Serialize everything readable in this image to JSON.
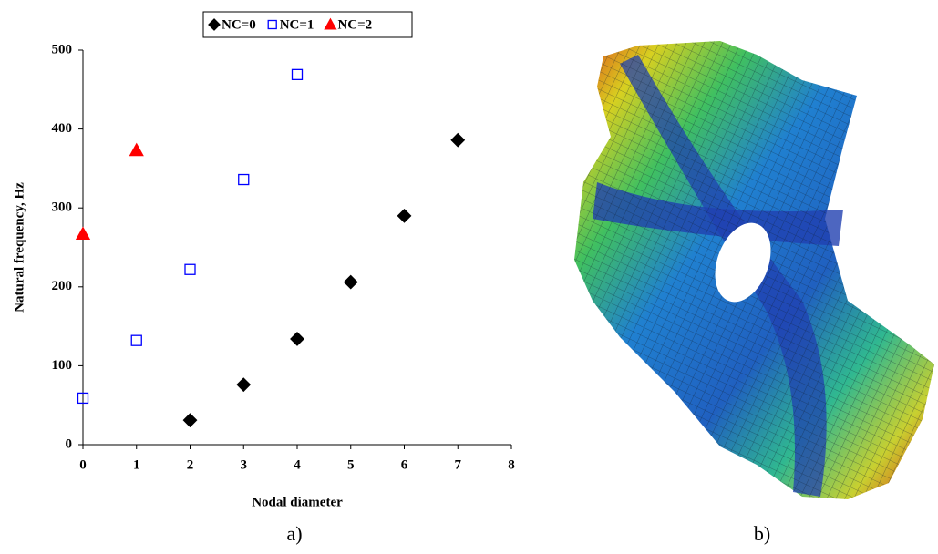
{
  "chart_data": {
    "type": "scatter",
    "x_label": "Nodal diameter",
    "y_label": "Natural frequency, Hz",
    "xlim": [
      0,
      8
    ],
    "xticks": [
      0,
      1,
      2,
      3,
      4,
      5,
      6,
      7,
      8
    ],
    "ylim": [
      0,
      500
    ],
    "yticks": [
      0,
      100,
      200,
      300,
      400,
      500
    ],
    "legend": "top",
    "series": [
      {
        "name": "NC=0",
        "color": "#000000",
        "marker": "diamond",
        "filled": true,
        "x": [
          2,
          3,
          4,
          5,
          6,
          7
        ],
        "values": [
          31,
          76,
          134,
          206,
          290,
          386
        ]
      },
      {
        "name": "NC=1",
        "color": "#0000ff",
        "marker": "square",
        "filled": false,
        "x": [
          0,
          1,
          2,
          3,
          4
        ],
        "values": [
          59,
          132,
          222,
          336,
          469
        ]
      },
      {
        "name": "NC=2",
        "color": "#ff0000",
        "marker": "triangle",
        "filled": true,
        "x": [
          0,
          1
        ],
        "values": [
          267,
          373
        ]
      }
    ]
  },
  "captions": [
    "a)",
    "b)"
  ]
}
